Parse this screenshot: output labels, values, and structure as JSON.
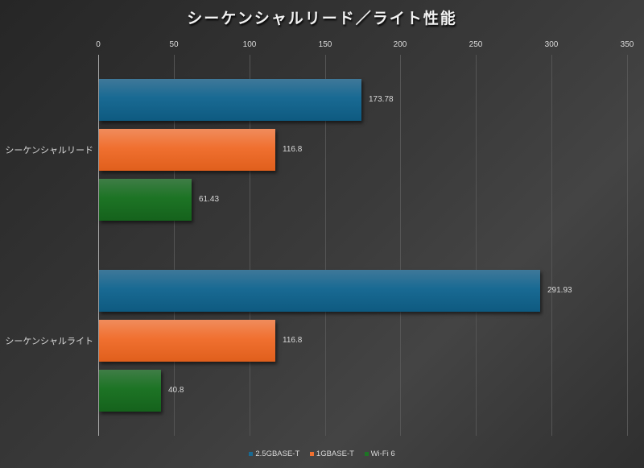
{
  "chart_data": {
    "type": "bar",
    "orientation": "horizontal",
    "title": "シーケンシャルリード／ライト性能",
    "categories": [
      "シーケンシャルリード",
      "シーケンシャルライト"
    ],
    "series": [
      {
        "name": "2.5GBASE-T",
        "color": "#196a93",
        "values": [
          173.78,
          291.93
        ]
      },
      {
        "name": "1GBASE-T",
        "color": "#f07030",
        "values": [
          116.8,
          116.8
        ]
      },
      {
        "name": "Wi-Fi 6",
        "color": "#1d7425",
        "values": [
          61.43,
          40.8
        ]
      }
    ],
    "value_labels": [
      [
        "173.78",
        "291.93"
      ],
      [
        "116.8",
        "116.8"
      ],
      [
        "61.43",
        "40.8"
      ]
    ],
    "xlabel": "",
    "ylabel": "",
    "xlim": [
      0,
      350
    ],
    "xticks": [
      "0",
      "50",
      "100",
      "150",
      "200",
      "250",
      "300",
      "350"
    ],
    "axis_position": "top",
    "grid": true,
    "legend_position": "bottom"
  }
}
